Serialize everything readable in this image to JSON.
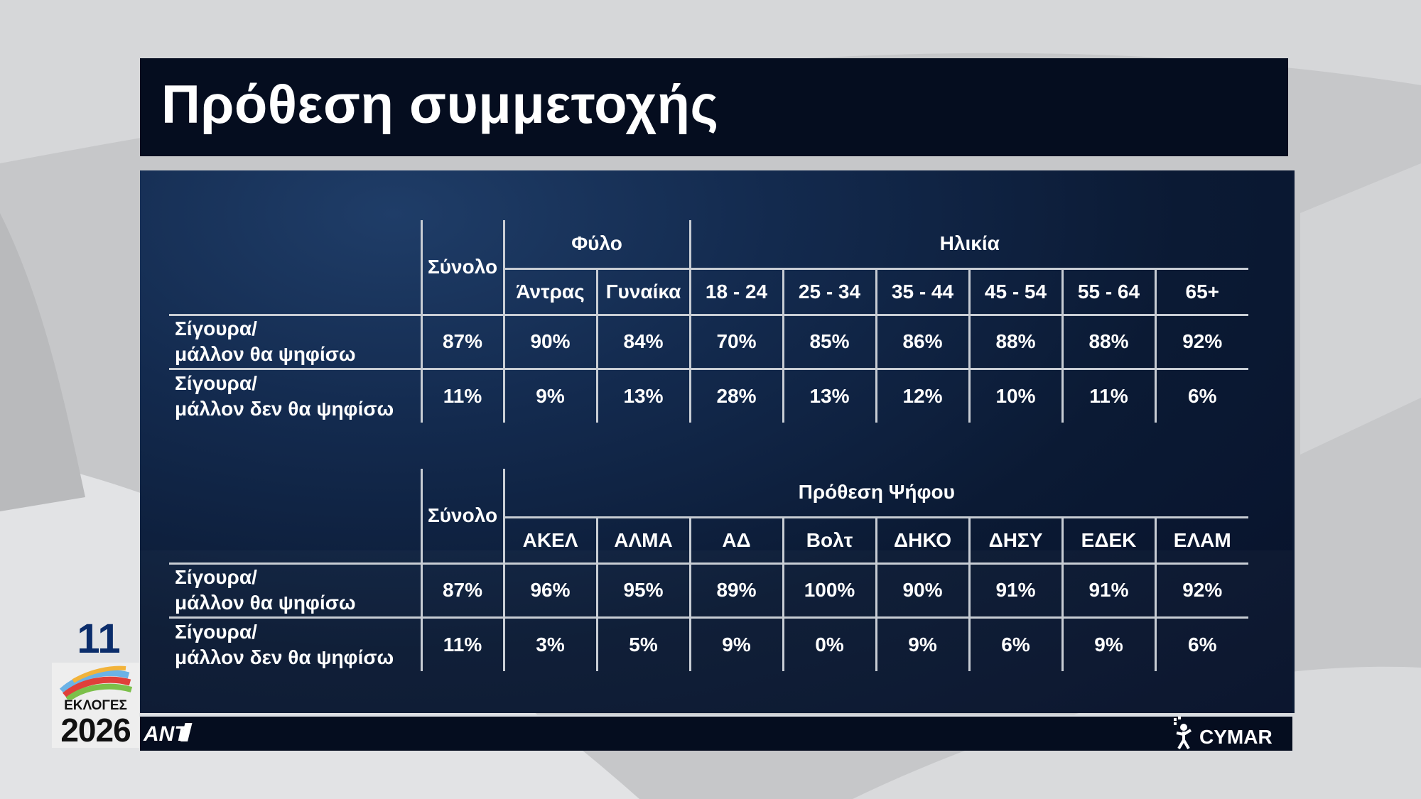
{
  "title": "Πρόθεση συμμετοχής",
  "table1": {
    "total_label": "Σύνολο",
    "group_gender": "Φύλο",
    "group_age": "Ηλικία",
    "columns": [
      "Άντρας",
      "Γυναίκα",
      "18 - 24",
      "25 - 34",
      "35 - 44",
      "45 - 54",
      "55 - 64",
      "65+"
    ],
    "rows": [
      {
        "label_line1": "Σίγουρα/",
        "label_line2": "μάλλον θα ψηφίσω",
        "total": "87%",
        "values": [
          "90%",
          "84%",
          "70%",
          "85%",
          "86%",
          "88%",
          "88%",
          "92%"
        ]
      },
      {
        "label_line1": "Σίγουρα/",
        "label_line2": "μάλλον δεν θα ψηφίσω",
        "total": "11%",
        "values": [
          "9%",
          "13%",
          "28%",
          "13%",
          "12%",
          "10%",
          "11%",
          "6%"
        ]
      }
    ]
  },
  "table2": {
    "total_label": "Σύνολο",
    "group_vote": "Πρόθεση Ψήφου",
    "columns": [
      "ΑΚΕΛ",
      "ΑΛΜΑ",
      "ΑΔ",
      "Βολτ",
      "ΔΗΚΟ",
      "ΔΗΣΥ",
      "ΕΔΕΚ",
      "ΕΛΑΜ"
    ],
    "rows": [
      {
        "label_line1": "Σίγουρα/",
        "label_line2": "μάλλον θα ψηφίσω",
        "total": "87%",
        "values": [
          "96%",
          "95%",
          "89%",
          "100%",
          "90%",
          "91%",
          "91%",
          "92%"
        ]
      },
      {
        "label_line1": "Σίγουρα/",
        "label_line2": "μάλλον δεν θα ψηφίσω",
        "total": "11%",
        "values": [
          "3%",
          "5%",
          "9%",
          "0%",
          "9%",
          "6%",
          "9%",
          "6%"
        ]
      }
    ]
  },
  "badge": {
    "number": "11",
    "text": "ΕΚΛΟΓΕΣ",
    "year": "2026"
  },
  "brand_left": "ANT1",
  "brand_right": "CYMAR",
  "colors": {
    "panel": "#0b1a34",
    "header_blue": "#8ec4ef",
    "title_bg": "#050d1f"
  }
}
